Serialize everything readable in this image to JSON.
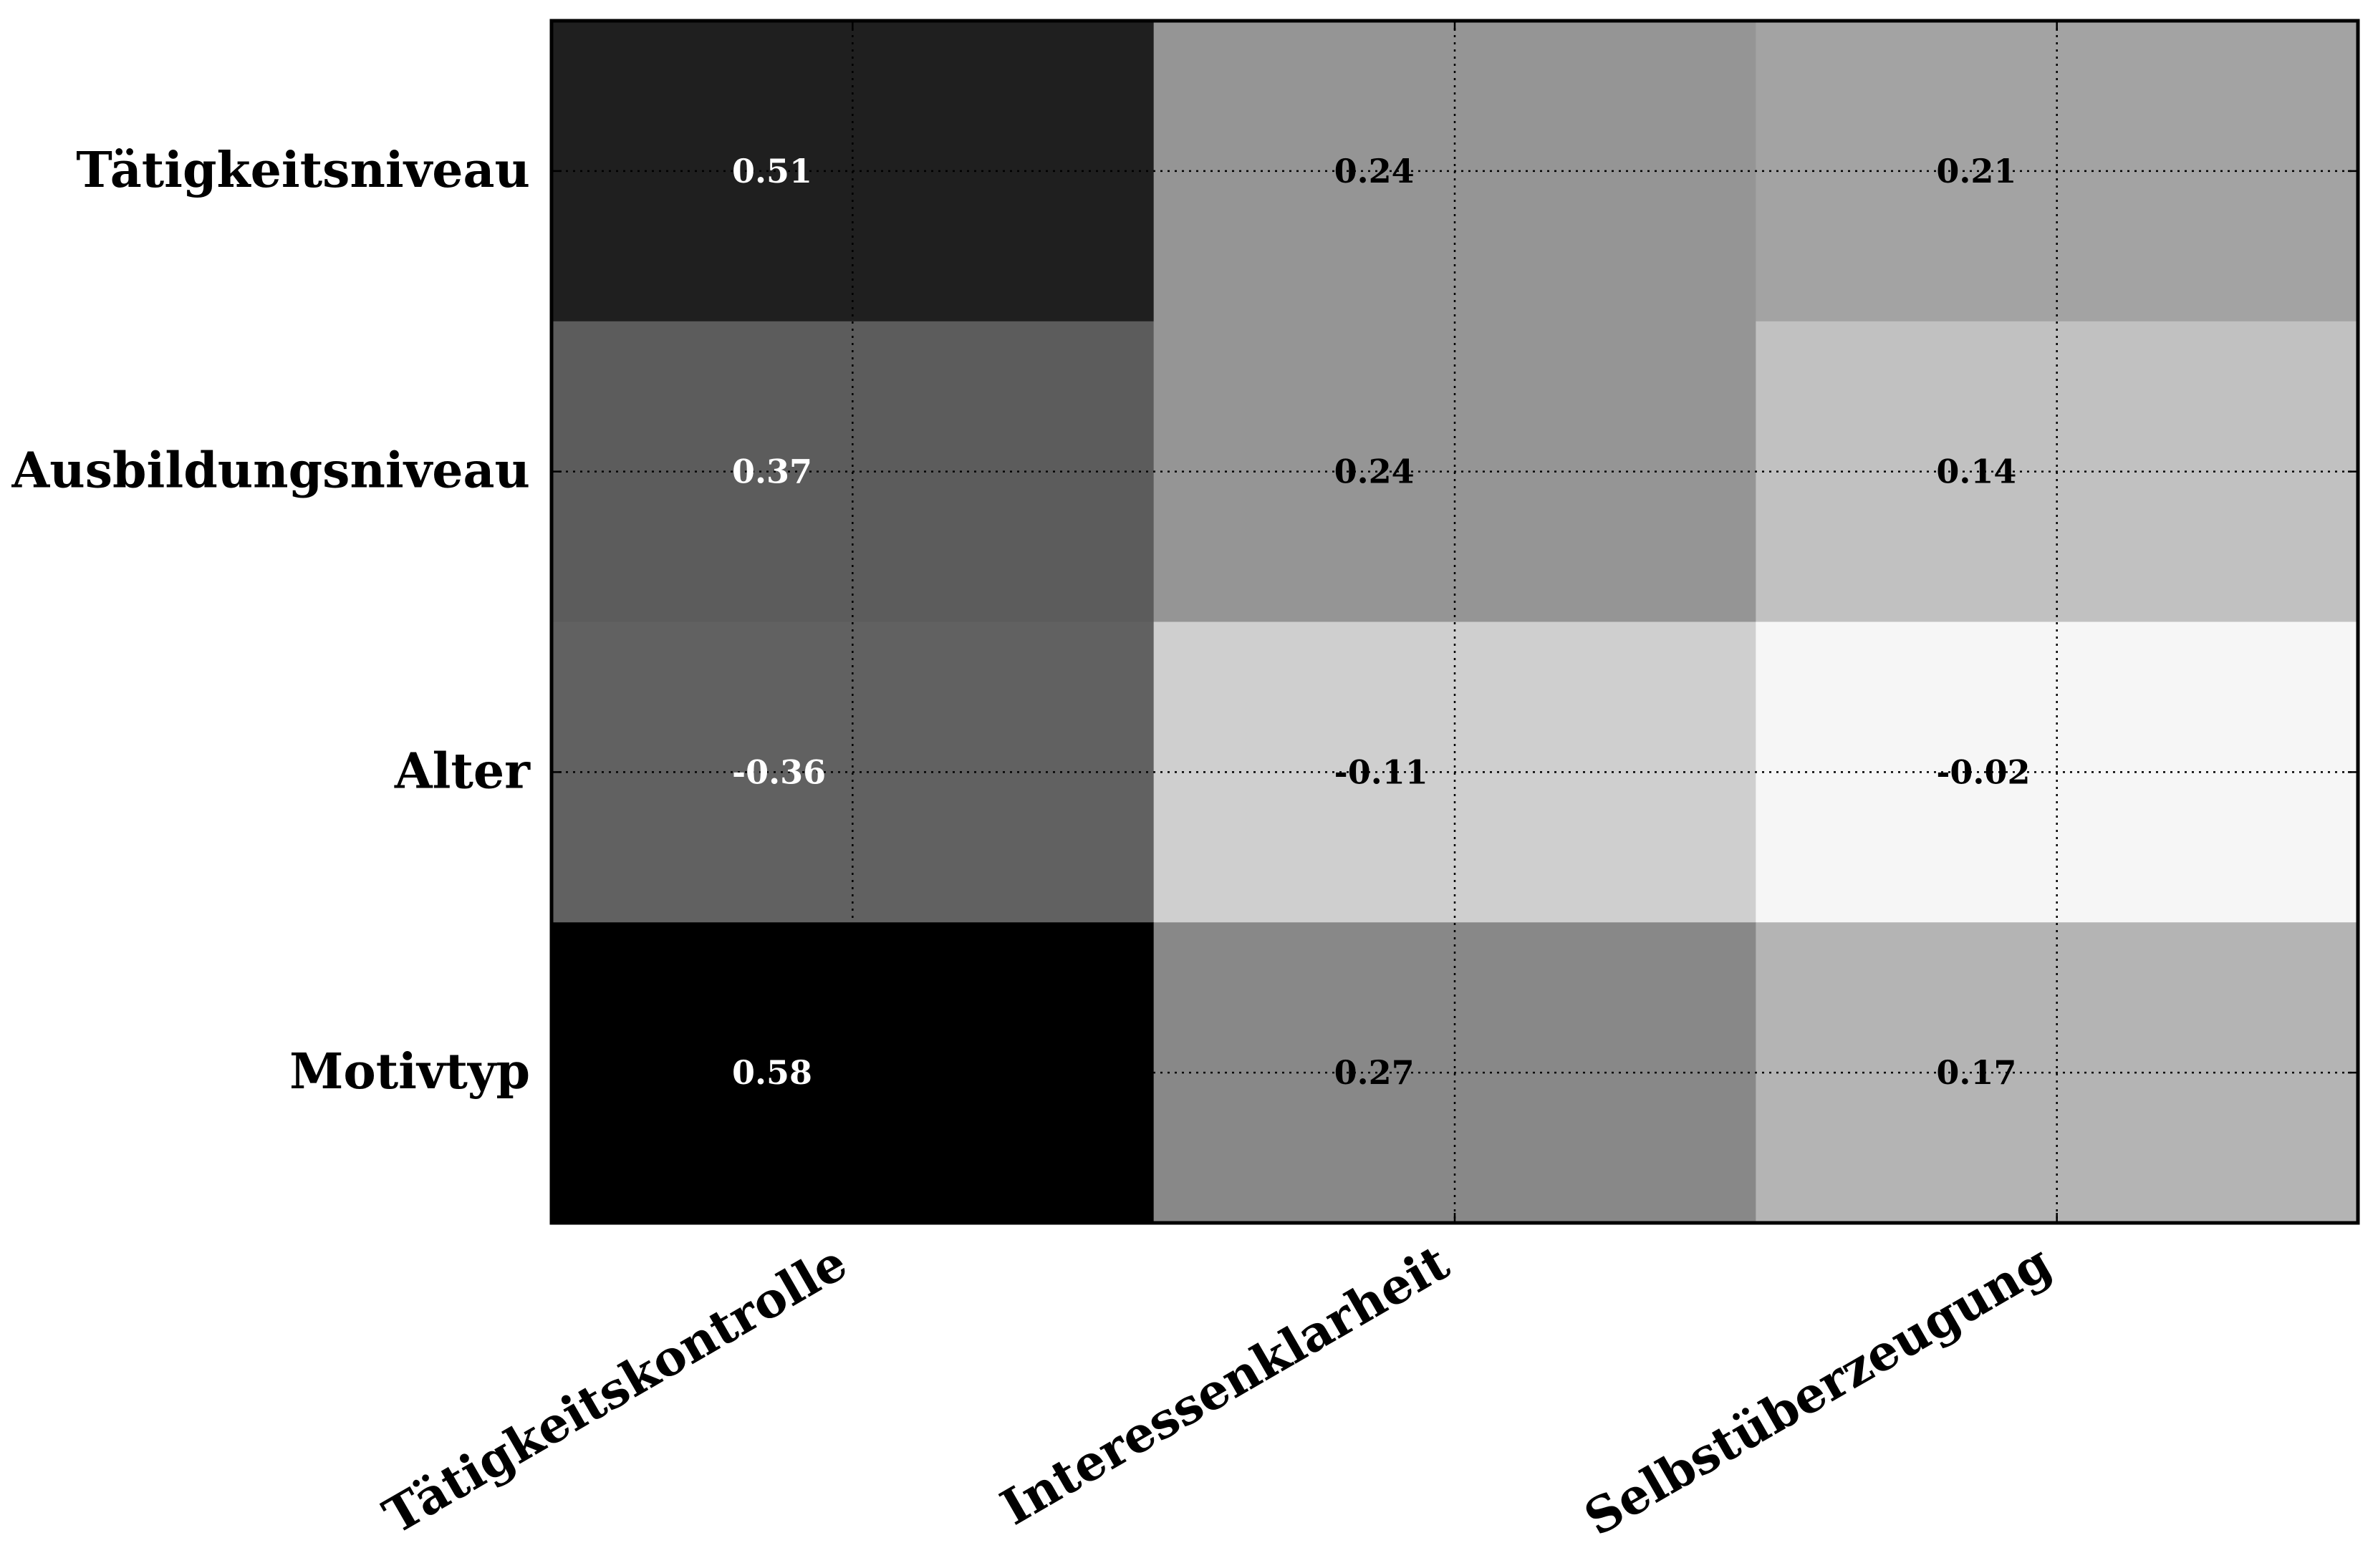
{
  "chart_data": {
    "type": "heatmap",
    "title": "",
    "xlabel": "",
    "ylabel": "",
    "columns": [
      "Tätigkeitskontrolle",
      "Interessenklarheit",
      "Selbstüberzeugung"
    ],
    "rows": [
      "Tätigkeitsniveau",
      "Ausbildungsniveau",
      "Alter",
      "Motivtyp"
    ],
    "values": [
      [
        0.51,
        0.24,
        0.21
      ],
      [
        0.37,
        0.24,
        0.14
      ],
      [
        -0.36,
        -0.11,
        -0.02
      ],
      [
        0.58,
        0.27,
        0.17
      ]
    ],
    "value_labels": [
      [
        "0.51",
        "0.24",
        "0.21"
      ],
      [
        "0.37",
        "0.24",
        "0.14"
      ],
      [
        "-0.36",
        "-0.11",
        "-0.02"
      ],
      [
        "0.58",
        "0.27",
        "0.17"
      ]
    ],
    "colormap": "gray_r (by absolute value)",
    "color_range": [
      0.0,
      0.58
    ],
    "grid": true,
    "grid_style": "dotted",
    "colors": {
      "low": "#ffffff",
      "high": "#000000",
      "frame": "#000000",
      "text_on_dark": "#ffffff",
      "text_on_light": "#000000"
    }
  }
}
